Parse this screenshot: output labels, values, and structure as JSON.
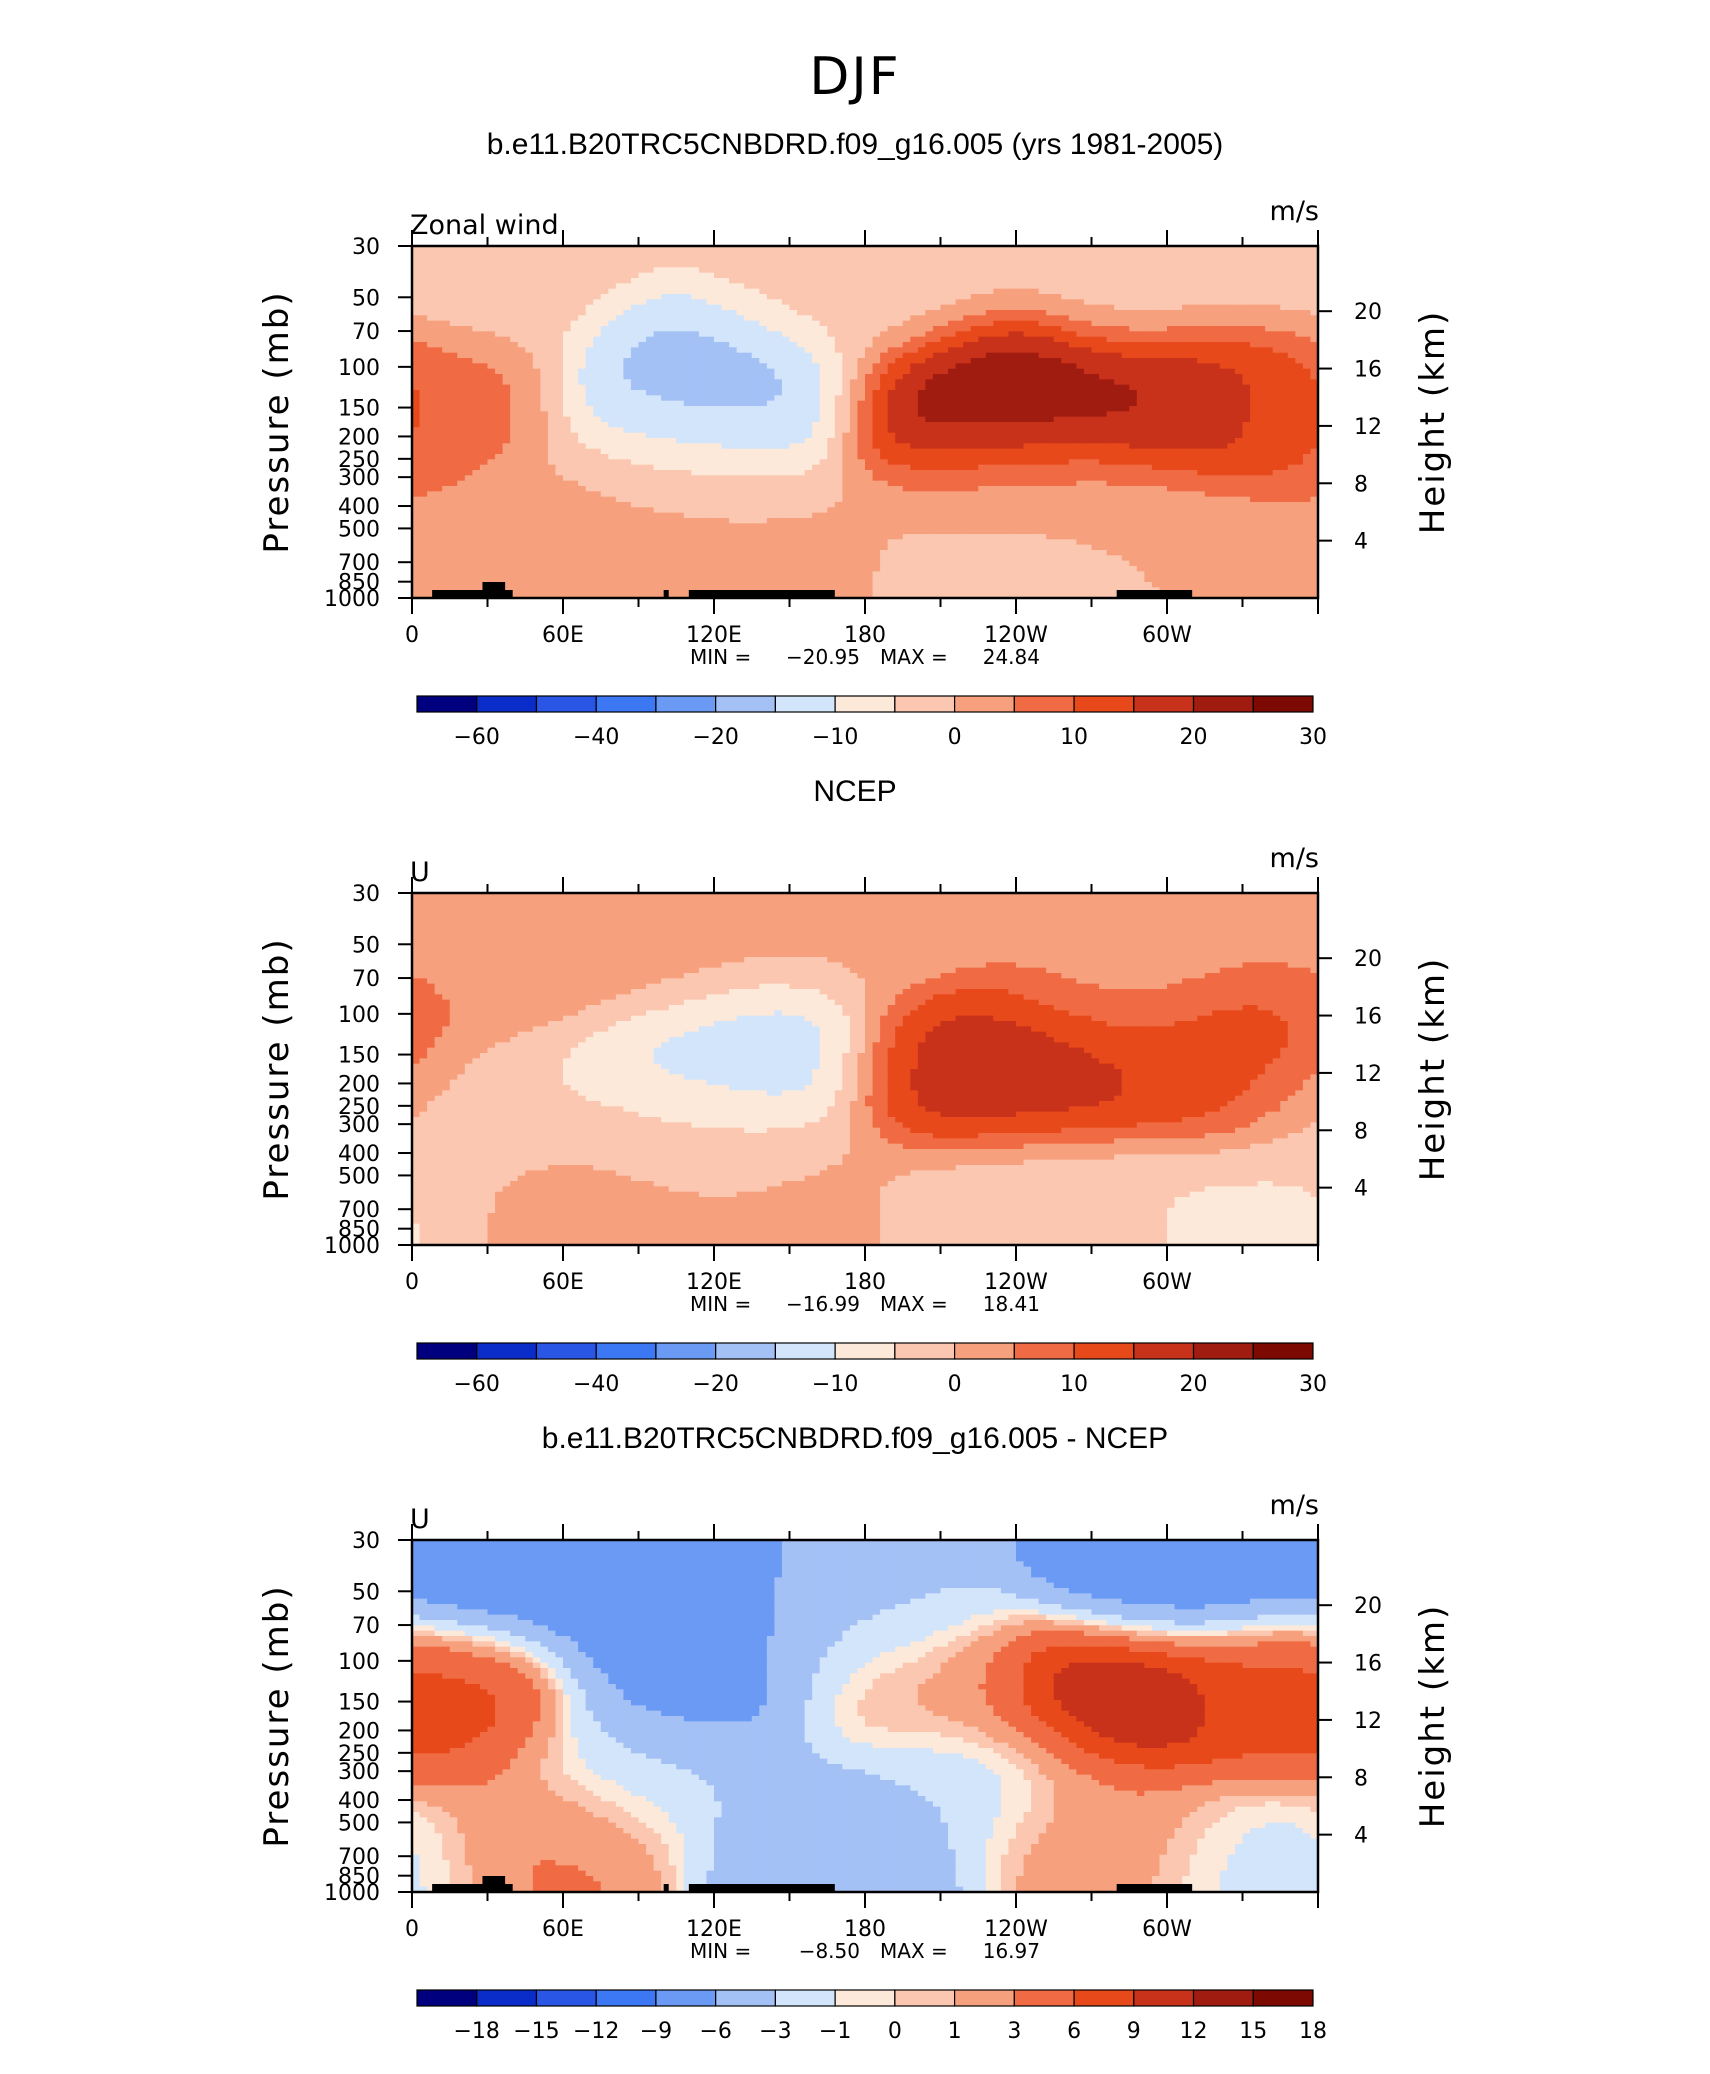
{
  "figure_title": "DJF",
  "chart_data": [
    {
      "type": "heatmap",
      "title": "b.e11.B20TRC5CNBDRD.f09_g16.005 (yrs 1981-2005)",
      "left_label": "Zonal wind",
      "units": "m/s",
      "xlabel": "",
      "ylabel": "Pressure (mb)",
      "y2label": "Height (km)",
      "x_ticks": [
        "0",
        "60E",
        "120E",
        "180",
        "120W",
        "60W"
      ],
      "y_ticks": [
        "30",
        "50",
        "70",
        "100",
        "150",
        "200",
        "250",
        "300",
        "400",
        "500",
        "700",
        "850",
        "1000"
      ],
      "y2_ticks": [
        "20",
        "16",
        "12",
        "8",
        "4"
      ],
      "xlim": [
        0,
        360
      ],
      "ylim": [
        1000,
        30
      ],
      "y_scale": "log",
      "min_label": "MIN =",
      "min_value": "−20.95",
      "max_label": "MAX =",
      "max_value": "24.84",
      "colorbar_labels": [
        "−60",
        "−40",
        "−20",
        "−10",
        "0",
        "10",
        "20",
        "30"
      ],
      "features": [
        {
          "lon": 0,
          "p": 150,
          "value": 7
        },
        {
          "lon": 118,
          "p": 130,
          "value": -17
        },
        {
          "lon": 105,
          "p": 350,
          "value": -5
        },
        {
          "lon": 40,
          "p": 600,
          "value": 3
        },
        {
          "lon": 90,
          "p": 640,
          "value": 7
        },
        {
          "lon": 140,
          "p": 800,
          "value": 2
        },
        {
          "lon": 235,
          "p": 150,
          "value": 24
        },
        {
          "lon": 315,
          "p": 145,
          "value": 22
        },
        {
          "lon": 242,
          "p": 400,
          "value": 2
        },
        {
          "lon": 298,
          "p": 540,
          "value": 1
        },
        {
          "lon": 238,
          "p": 850,
          "value": -4
        },
        {
          "lon": 20,
          "p": 40,
          "value": -3
        },
        {
          "lon": 180,
          "p": 40,
          "value": -3
        },
        {
          "lon": 300,
          "p": 40,
          "value": -3
        }
      ]
    },
    {
      "type": "heatmap",
      "title": "NCEP",
      "left_label": "U",
      "units": "m/s",
      "xlabel": "",
      "ylabel": "Pressure (mb)",
      "y2label": "Height (km)",
      "x_ticks": [
        "0",
        "60E",
        "120E",
        "180",
        "120W",
        "60W"
      ],
      "y_ticks": [
        "30",
        "50",
        "70",
        "100",
        "150",
        "200",
        "250",
        "300",
        "400",
        "500",
        "700",
        "850",
        "1000"
      ],
      "y2_ticks": [
        "20",
        "16",
        "12",
        "8",
        "4"
      ],
      "xlim": [
        0,
        360
      ],
      "ylim": [
        1000,
        30
      ],
      "y_scale": "log",
      "min_label": "MIN =",
      "min_value": "−16.99",
      "max_label": "MAX =",
      "max_value": "18.41",
      "colorbar_labels": [
        "−60",
        "−40",
        "−20",
        "−10",
        "0",
        "10",
        "20",
        "30"
      ],
      "features": [
        {
          "lon": 30,
          "p": 55,
          "value": 4
        },
        {
          "lon": 95,
          "p": 55,
          "value": 4
        },
        {
          "lon": 20,
          "p": 250,
          "value": -5
        },
        {
          "lon": 122,
          "p": 140,
          "value": -14
        },
        {
          "lon": 100,
          "p": 350,
          "value": -4
        },
        {
          "lon": 238,
          "p": 170,
          "value": 18
        },
        {
          "lon": 330,
          "p": 165,
          "value": 15
        },
        {
          "lon": 285,
          "p": 60,
          "value": 3
        },
        {
          "lon": 70,
          "p": 700,
          "value": 4
        },
        {
          "lon": 145,
          "p": 800,
          "value": 1
        },
        {
          "lon": 250,
          "p": 750,
          "value": -4
        },
        {
          "lon": 340,
          "p": 750,
          "value": -6
        },
        {
          "lon": 180,
          "p": 35,
          "value": 1
        }
      ]
    },
    {
      "type": "heatmap",
      "title": "b.e11.B20TRC5CNBDRD.f09_g16.005 - NCEP",
      "left_label": "U",
      "units": "m/s",
      "xlabel": "",
      "ylabel": "Pressure (mb)",
      "y2label": "Height (km)",
      "x_ticks": [
        "0",
        "60E",
        "120E",
        "180",
        "120W",
        "60W"
      ],
      "y_ticks": [
        "30",
        "50",
        "70",
        "100",
        "150",
        "200",
        "250",
        "300",
        "400",
        "500",
        "700",
        "850",
        "1000"
      ],
      "y2_ticks": [
        "20",
        "16",
        "12",
        "8",
        "4"
      ],
      "xlim": [
        0,
        360
      ],
      "ylim": [
        1000,
        30
      ],
      "y_scale": "log",
      "min_label": "MIN =",
      "min_value": "−8.50",
      "max_label": "MAX =",
      "max_value": "16.97",
      "colorbar_labels": [
        "−18",
        "−15",
        "−12",
        "−9",
        "−6",
        "−3",
        "−1",
        "0",
        "1",
        "3",
        "6",
        "9",
        "12",
        "15",
        "18"
      ],
      "features": [
        {
          "lon": 25,
          "p": 45,
          "value": -9
        },
        {
          "lon": 100,
          "p": 50,
          "value": -9
        },
        {
          "lon": 300,
          "p": 45,
          "value": -9
        },
        {
          "lon": 180,
          "p": 60,
          "value": -4
        },
        {
          "lon": 10,
          "p": 145,
          "value": 8
        },
        {
          "lon": 110,
          "p": 120,
          "value": -8
        },
        {
          "lon": 205,
          "p": 130,
          "value": 2
        },
        {
          "lon": 280,
          "p": 145,
          "value": 14
        },
        {
          "lon": 350,
          "p": 150,
          "value": 6
        },
        {
          "lon": 90,
          "p": 320,
          "value": -3
        },
        {
          "lon": 225,
          "p": 320,
          "value": -3
        },
        {
          "lon": 60,
          "p": 560,
          "value": 4
        },
        {
          "lon": 165,
          "p": 650,
          "value": -6
        },
        {
          "lon": 275,
          "p": 520,
          "value": 3
        },
        {
          "lon": 340,
          "p": 650,
          "value": -2
        }
      ]
    }
  ]
}
